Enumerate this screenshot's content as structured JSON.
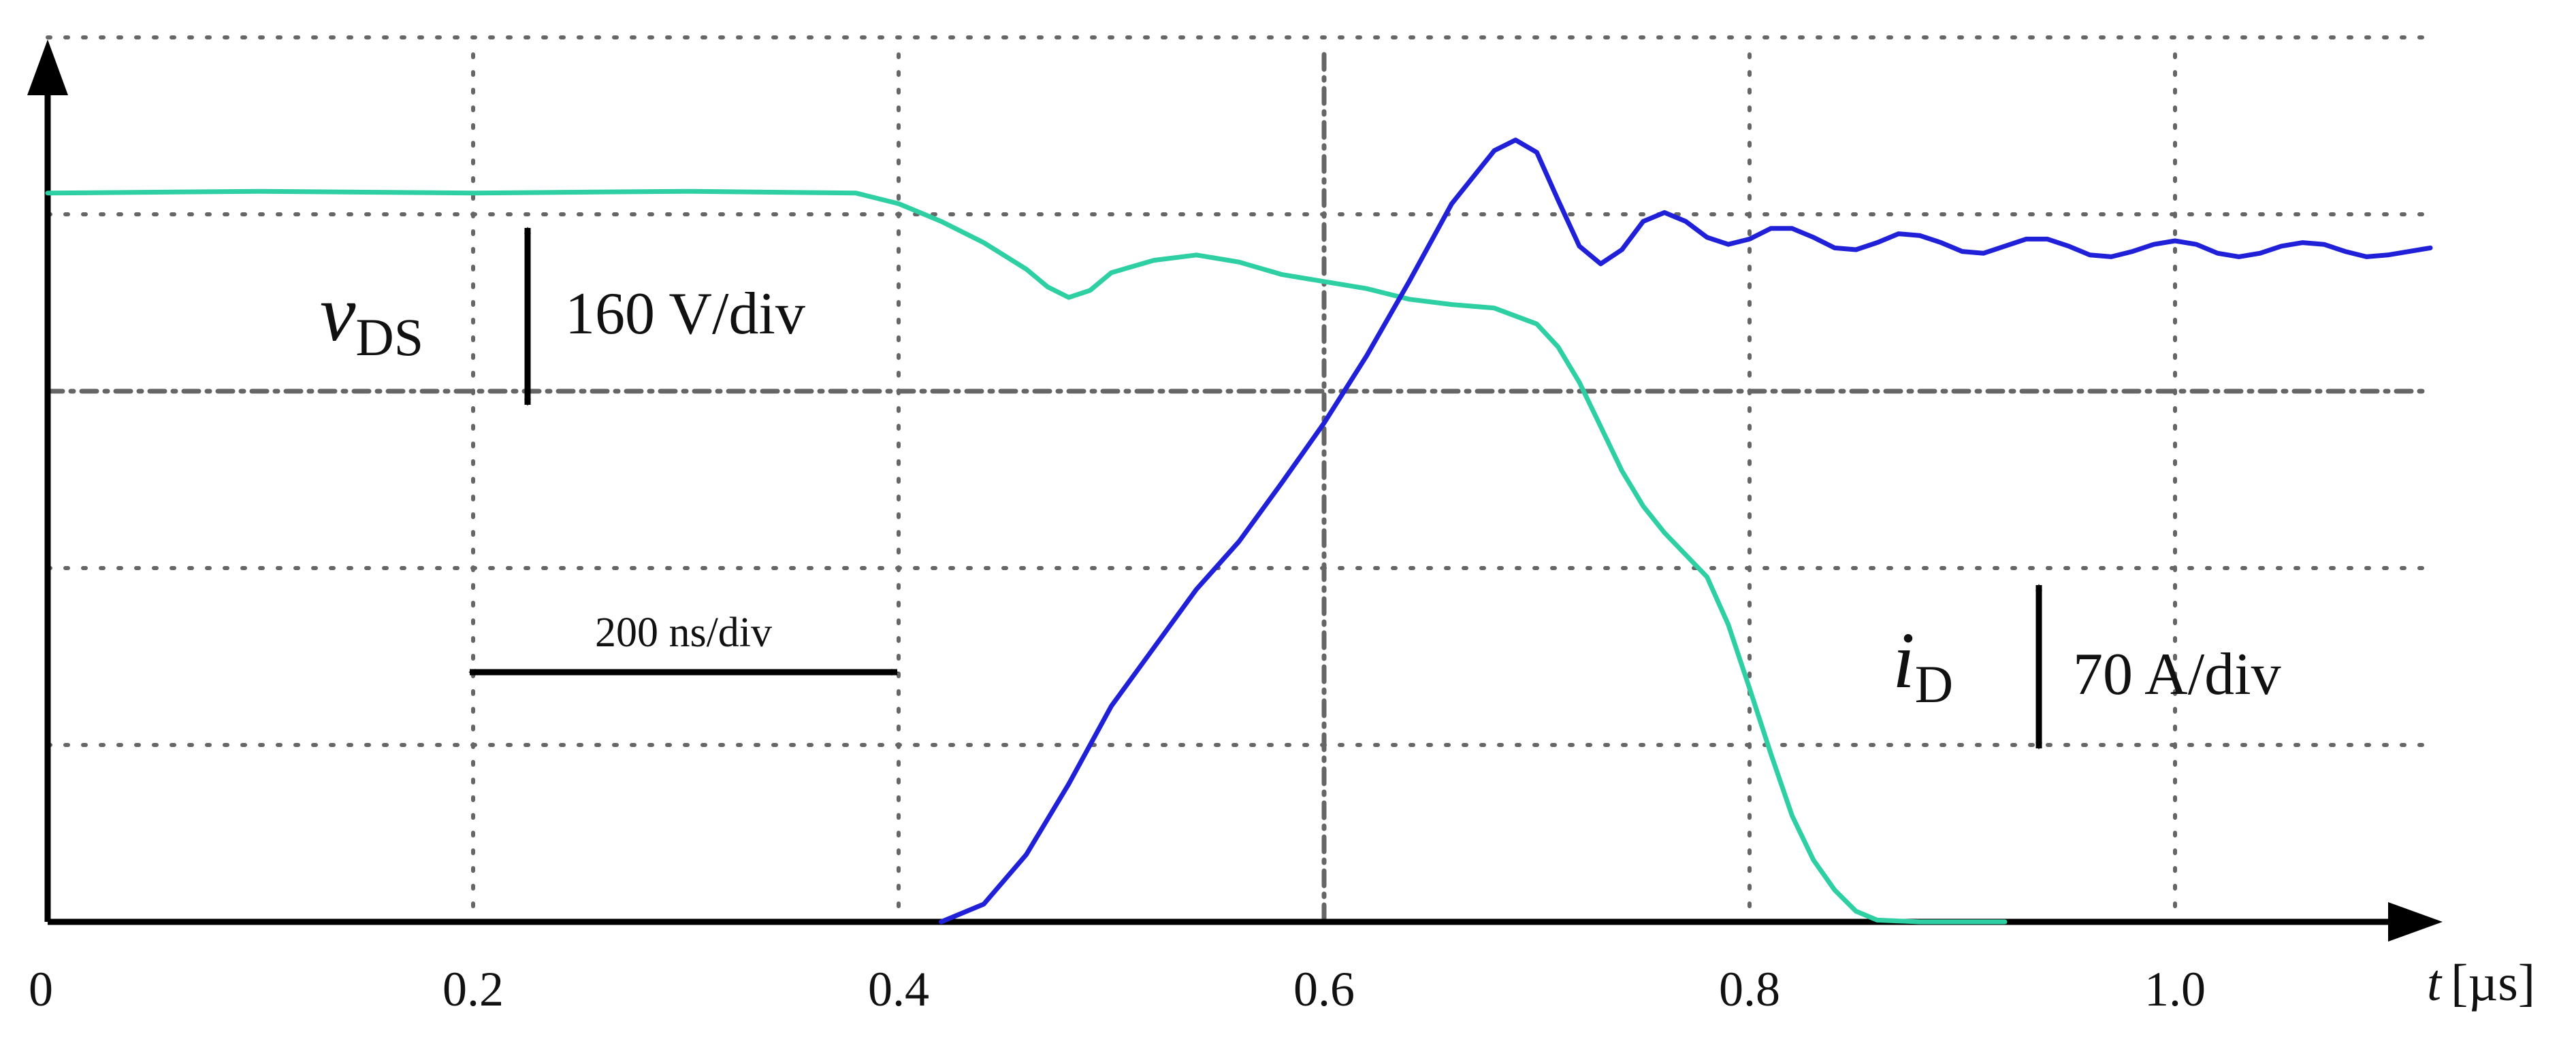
{
  "chart_data": {
    "type": "line",
    "x_unit": "µs",
    "xlim": [
      0,
      1.12
    ],
    "ylim": [
      0,
      5
    ],
    "x_ticks": [
      "0",
      "0.2",
      "0.4",
      "0.6",
      "0.8",
      "1.0"
    ],
    "x_tick_values": [
      0,
      0.2,
      0.4,
      0.6,
      0.8,
      1.0
    ],
    "x_axis_label": {
      "var": "t",
      "unit": "[µs]"
    },
    "grid": true,
    "series": [
      {
        "name": "vDS",
        "color": "#2ecfa2",
        "x": [
          0,
          0.1,
          0.2,
          0.3,
          0.38,
          0.4,
          0.42,
          0.44,
          0.46,
          0.47,
          0.48,
          0.49,
          0.5,
          0.52,
          0.54,
          0.56,
          0.58,
          0.6,
          0.62,
          0.64,
          0.66,
          0.68,
          0.7,
          0.71,
          0.72,
          0.73,
          0.74,
          0.75,
          0.76,
          0.78,
          0.79,
          0.8,
          0.81,
          0.82,
          0.83,
          0.84,
          0.85,
          0.86,
          0.88,
          0.9,
          0.92
        ],
        "y": [
          4.12,
          4.13,
          4.12,
          4.13,
          4.12,
          4.06,
          3.96,
          3.84,
          3.69,
          3.59,
          3.53,
          3.57,
          3.67,
          3.74,
          3.77,
          3.73,
          3.66,
          3.62,
          3.58,
          3.52,
          3.49,
          3.47,
          3.38,
          3.25,
          3.05,
          2.8,
          2.55,
          2.35,
          2.2,
          1.95,
          1.68,
          1.32,
          0.95,
          0.6,
          0.35,
          0.18,
          0.06,
          0.01,
          0.0,
          0.0,
          0.0
        ]
      },
      {
        "name": "iD",
        "color": "#2020d8",
        "x": [
          0.42,
          0.44,
          0.46,
          0.48,
          0.5,
          0.52,
          0.54,
          0.56,
          0.58,
          0.6,
          0.62,
          0.64,
          0.66,
          0.68,
          0.69,
          0.7,
          0.71,
          0.72,
          0.73,
          0.74,
          0.75,
          0.76,
          0.77,
          0.78,
          0.79,
          0.8,
          0.81,
          0.82,
          0.83,
          0.84,
          0.85,
          0.86,
          0.87,
          0.88,
          0.89,
          0.9,
          0.91,
          0.92,
          0.93,
          0.94,
          0.95,
          0.96,
          0.97,
          0.98,
          0.99,
          1.0,
          1.01,
          1.02,
          1.03,
          1.04,
          1.05,
          1.06,
          1.07,
          1.08,
          1.09,
          1.1,
          1.12
        ],
        "y": [
          0.0,
          0.1,
          0.38,
          0.78,
          1.22,
          1.55,
          1.88,
          2.15,
          2.48,
          2.82,
          3.2,
          3.62,
          4.06,
          4.36,
          4.42,
          4.35,
          4.08,
          3.82,
          3.72,
          3.8,
          3.96,
          4.01,
          3.96,
          3.87,
          3.83,
          3.86,
          3.92,
          3.92,
          3.87,
          3.81,
          3.8,
          3.84,
          3.89,
          3.88,
          3.84,
          3.79,
          3.78,
          3.82,
          3.86,
          3.86,
          3.82,
          3.77,
          3.76,
          3.79,
          3.83,
          3.85,
          3.83,
          3.78,
          3.76,
          3.78,
          3.82,
          3.84,
          3.83,
          3.79,
          3.76,
          3.77,
          3.81
        ]
      }
    ],
    "annotations": {
      "vds_symbol": "v",
      "vds_subscript": "DS",
      "vds_scale": "160 V/div",
      "id_symbol": "i",
      "id_subscript": "D",
      "id_scale": "70 A/div",
      "time_scale": "200 ns/div"
    }
  }
}
